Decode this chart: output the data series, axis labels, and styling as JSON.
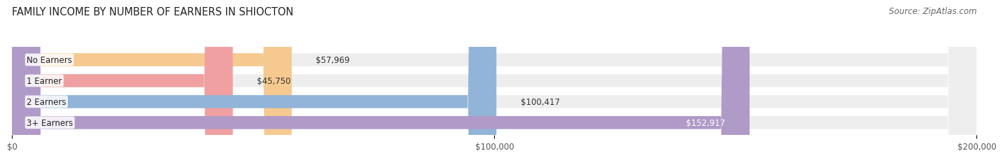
{
  "title": "FAMILY INCOME BY NUMBER OF EARNERS IN SHIOCTON",
  "source": "Source: ZipAtlas.com",
  "categories": [
    "No Earners",
    "1 Earner",
    "2 Earners",
    "3+ Earners"
  ],
  "values": [
    57969,
    45750,
    100417,
    152917
  ],
  "bar_colors": [
    "#f5c990",
    "#f0a0a0",
    "#92b4d8",
    "#b09ac8"
  ],
  "label_colors": [
    "#333333",
    "#333333",
    "#333333",
    "#ffffff"
  ],
  "bar_bg_color": "#eeeeee",
  "xlim": [
    0,
    200000
  ],
  "xtick_values": [
    0,
    100000,
    200000
  ],
  "xtick_labels": [
    "$0",
    "$100,000",
    "$200,000"
  ],
  "bar_height": 0.62,
  "background_color": "#ffffff",
  "title_fontsize": 10.5,
  "source_fontsize": 8.5,
  "label_fontsize": 8.5,
  "category_fontsize": 8.5
}
